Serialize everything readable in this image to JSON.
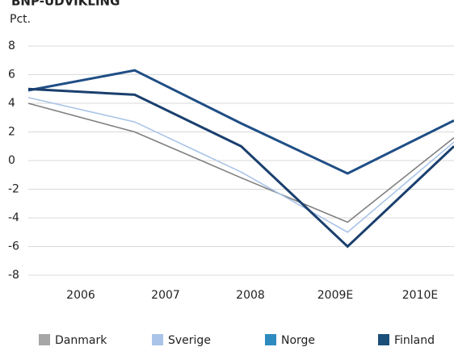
{
  "chart_data": {
    "type": "line",
    "title": "BNP-UDVIKLING",
    "y_label": "Pct.",
    "categories": [
      "2006",
      "2007",
      "2008",
      "2009E",
      "2010E"
    ],
    "series": [
      {
        "name": "Danmark",
        "color": "#7f7f7f",
        "legend_color": "#a6a6a6",
        "values": [
          4.0,
          2.0,
          -1.2,
          -4.3,
          1.6
        ]
      },
      {
        "name": "Sverige",
        "color": "#a9c4e8",
        "legend_color": "#a9c4e8",
        "values": [
          4.4,
          2.7,
          -0.8,
          -5.0,
          1.3
        ]
      },
      {
        "name": "Norge",
        "color": "#1f4e85",
        "legend_color": "#2e8bc0",
        "values": [
          4.9,
          6.3,
          2.6,
          -0.9,
          2.8
        ]
      },
      {
        "name": "Finland",
        "color": "#1a3f6e",
        "legend_color": "#1a4f7a",
        "values": [
          5.0,
          4.6,
          1.0,
          -6.0,
          1.0
        ]
      }
    ],
    "ylim": [
      -8,
      8
    ],
    "yticks": [
      8,
      6,
      4,
      2,
      0,
      -2,
      -4,
      -6,
      -8
    ],
    "grid": true
  }
}
